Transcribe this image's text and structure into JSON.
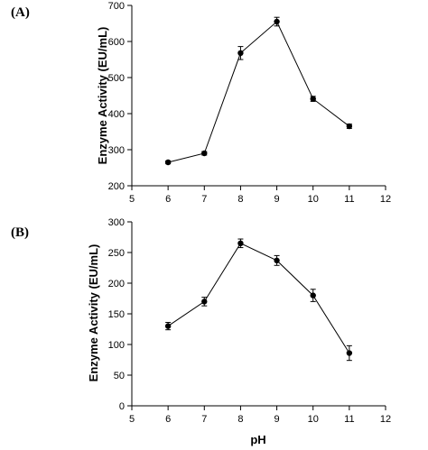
{
  "chart_data": [
    {
      "type": "line",
      "panel_label": "(A)",
      "ylabel": "Enzyme Activity (EU/mL)",
      "xlabel": "",
      "xlim": [
        5,
        12
      ],
      "ylim": [
        200,
        700
      ],
      "xticks": [
        5,
        6,
        7,
        8,
        9,
        10,
        11,
        12
      ],
      "yticks": [
        200,
        300,
        400,
        500,
        600,
        700
      ],
      "x": [
        6,
        7,
        8,
        9,
        10,
        11
      ],
      "series": [
        {
          "values": [
            265,
            290,
            568,
            655,
            441,
            365
          ],
          "errors": [
            4,
            5,
            18,
            12,
            7,
            6
          ]
        }
      ],
      "grid": false,
      "marker": "circle",
      "color": "#000000"
    },
    {
      "type": "line",
      "panel_label": "(B)",
      "ylabel": "Enzyme Activity (EU/mL)",
      "xlabel": "pH",
      "xlim": [
        5,
        12
      ],
      "ylim": [
        0,
        300
      ],
      "xticks": [
        5,
        6,
        7,
        8,
        9,
        10,
        11,
        12
      ],
      "yticks": [
        0,
        50,
        100,
        150,
        200,
        250,
        300
      ],
      "x": [
        6,
        7,
        8,
        9,
        10,
        11
      ],
      "series": [
        {
          "values": [
            130,
            170,
            265,
            237,
            180,
            86
          ],
          "errors": [
            6,
            7,
            7,
            8,
            10,
            12
          ]
        }
      ],
      "grid": false,
      "marker": "circle",
      "color": "#000000"
    }
  ]
}
